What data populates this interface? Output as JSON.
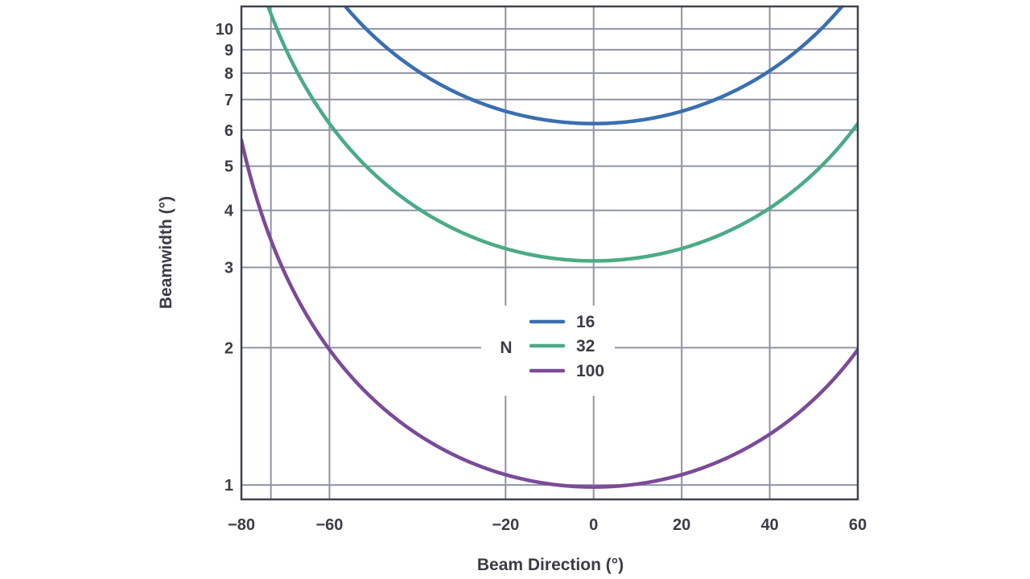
{
  "chart_data": {
    "type": "line",
    "xlabel": "Beam Direction (°)",
    "ylabel": "Beamwidth (°)",
    "xlim": [
      -80,
      60
    ],
    "ylim": [
      0.93,
      11.2
    ],
    "y_scale": "log",
    "grid": true,
    "x_ticks": [
      -80,
      -60,
      -20,
      0,
      20,
      40,
      60
    ],
    "x_tick_labels": [
      "−80",
      "−60",
      "−20",
      "0",
      "20",
      "40",
      "60"
    ],
    "x_gridlines": [
      -80,
      -73.3,
      -60,
      -20,
      0,
      20,
      40,
      60
    ],
    "y_ticks": [
      1,
      2,
      3,
      4,
      5,
      6,
      7,
      8,
      9,
      10
    ],
    "y_tick_labels": [
      "1",
      "2",
      "3",
      "4",
      "5",
      "6",
      "7",
      "8",
      "9",
      "10"
    ],
    "legend": {
      "title": "N",
      "placement": "center",
      "entries": [
        "16",
        "32",
        "100"
      ]
    },
    "series": [
      {
        "name": "16",
        "color": "#3a6fb0",
        "broadside_value": 6.2
      },
      {
        "name": "32",
        "color": "#4aab85",
        "broadside_value": 3.1
      },
      {
        "name": "100",
        "color": "#7b4a99",
        "broadside_value": 0.99
      }
    ]
  }
}
